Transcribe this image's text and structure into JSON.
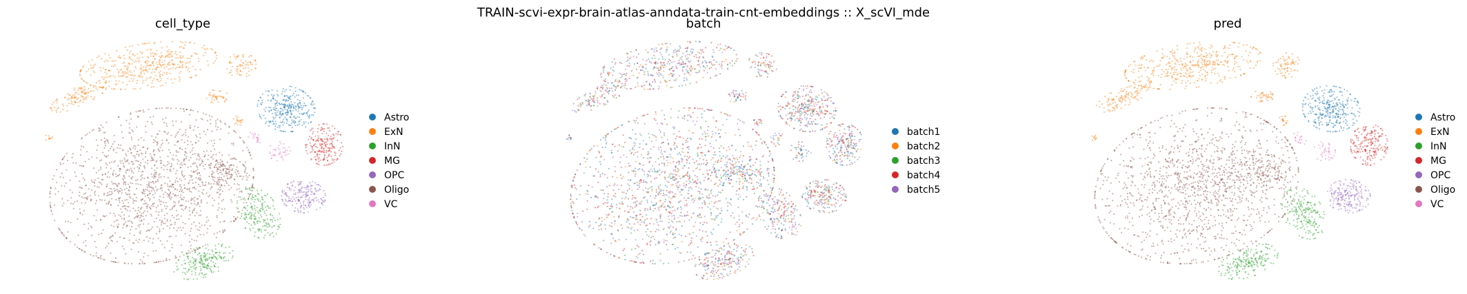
{
  "figure": {
    "suptitle": "TRAIN-scvi-expr-brain-atlas-anndata-train-cnt-embeddings :: X_scVI_mde"
  },
  "chart_data": [
    {
      "type": "scatter",
      "title": "cell_type",
      "xlabel": "",
      "ylabel": "",
      "axes_visible": false,
      "grid": false,
      "legend_position": "right",
      "series": [
        {
          "name": "Astro",
          "color": "#1f77b4"
        },
        {
          "name": "ExN",
          "color": "#ff7f0e"
        },
        {
          "name": "InN",
          "color": "#2ca02c"
        },
        {
          "name": "MG",
          "color": "#d62728"
        },
        {
          "name": "OPC",
          "color": "#9467bd"
        },
        {
          "name": "Oligo",
          "color": "#8c564b"
        },
        {
          "name": "VC",
          "color": "#e377c2"
        }
      ]
    },
    {
      "type": "scatter",
      "title": "batch",
      "xlabel": "",
      "ylabel": "",
      "axes_visible": false,
      "grid": false,
      "legend_position": "right",
      "series": [
        {
          "name": "batch1",
          "color": "#1f77b4"
        },
        {
          "name": "batch2",
          "color": "#ff7f0e"
        },
        {
          "name": "batch3",
          "color": "#2ca02c"
        },
        {
          "name": "batch4",
          "color": "#d62728"
        },
        {
          "name": "batch5",
          "color": "#9467bd"
        }
      ]
    },
    {
      "type": "scatter",
      "title": "pred",
      "xlabel": "",
      "ylabel": "",
      "axes_visible": false,
      "grid": false,
      "legend_position": "right",
      "series": [
        {
          "name": "Astro",
          "color": "#1f77b4"
        },
        {
          "name": "ExN",
          "color": "#ff7f0e"
        },
        {
          "name": "InN",
          "color": "#2ca02c"
        },
        {
          "name": "MG",
          "color": "#d62728"
        },
        {
          "name": "OPC",
          "color": "#9467bd"
        },
        {
          "name": "Oligo",
          "color": "#8c564b"
        },
        {
          "name": "VC",
          "color": "#e377c2"
        }
      ]
    }
  ]
}
